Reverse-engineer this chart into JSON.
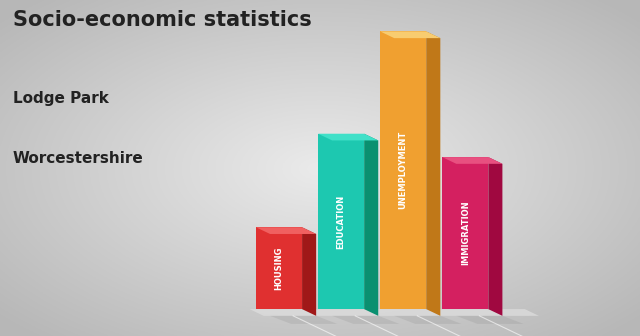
{
  "title_line1": "Socio-economic statistics",
  "title_line2": "Lodge Park",
  "title_line3": "Worcestershire",
  "categories": [
    "HOUSING",
    "EDUCATION",
    "UNEMPLOYMENT",
    "IMMIGRATION"
  ],
  "values": [
    0.28,
    0.6,
    0.95,
    0.52
  ],
  "bar_colors_front": [
    "#e03030",
    "#1dc8b0",
    "#f0a030",
    "#d42060"
  ],
  "bar_colors_top": [
    "#f06060",
    "#40e0c8",
    "#f8cc70",
    "#e85080"
  ],
  "bar_colors_side": [
    "#a01818",
    "#0a9070",
    "#c07818",
    "#a00840"
  ],
  "background_color": "#c8c8c8",
  "text_color": "#222222",
  "floor_color": "#e0e0e0"
}
